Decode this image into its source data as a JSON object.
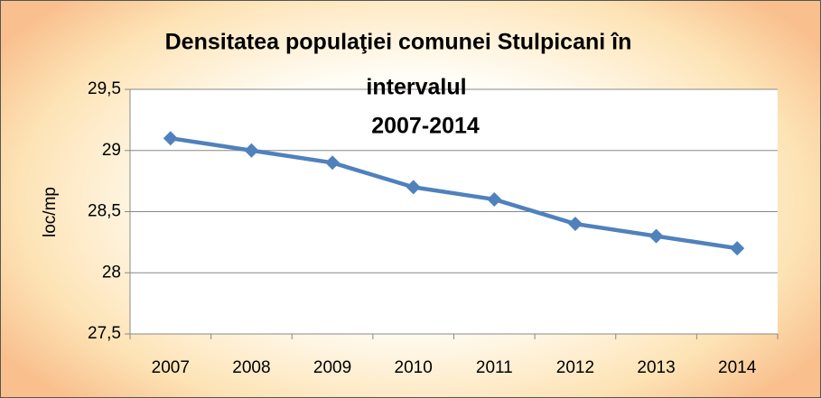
{
  "chart_data": {
    "type": "line",
    "title": [
      "Densitatea populaţiei comunei  Stulpicani  în",
      "intervalul",
      "2007-2014"
    ],
    "y_label": "loc/mp",
    "categories": [
      "2007",
      "2008",
      "2009",
      "2010",
      "2011",
      "2012",
      "2013",
      "2014"
    ],
    "series": [
      {
        "name": "loc/mp",
        "color": "#4f81bd",
        "values": [
          29.1,
          29.0,
          28.9,
          28.7,
          28.6,
          28.4,
          28.3,
          28.2
        ]
      }
    ],
    "ylim": [
      27.5,
      29.5
    ],
    "yticks": [
      {
        "value": 27.5,
        "label": "27,5"
      },
      28,
      {
        "value": 28.5,
        "label": "28,5"
      },
      29,
      {
        "value": 29.5,
        "label": "29,5"
      }
    ],
    "grid": true
  }
}
